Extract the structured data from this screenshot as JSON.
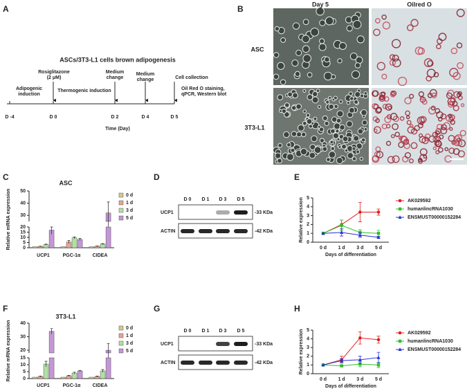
{
  "panel_labels": [
    "A",
    "B",
    "C",
    "D",
    "E",
    "F",
    "G",
    "H"
  ],
  "timeline": {
    "title": "ASCs/3T3-L1 cells brown adipogenesis",
    "days": [
      "D -4",
      "D 0",
      "D 2",
      "D 4",
      "D 5"
    ],
    "events": [
      [
        "Adipogenic",
        "induction"
      ],
      [
        "Rosiglitazone",
        "(2 μM)"
      ],
      [
        "Thermogenic induction"
      ],
      [
        "Medium",
        "change"
      ],
      [
        "Medium",
        "change"
      ],
      [
        "Cell collection"
      ],
      [
        "Oil Red O staining,",
        "qPCR, Western blot"
      ]
    ],
    "axis_label": "Time (Day)"
  },
  "images": {
    "columns": [
      "Day 5",
      "Oilred O"
    ],
    "rows": [
      "ASC",
      "3T3-L1"
    ]
  },
  "blots": [
    {
      "lanes": [
        "D 0",
        "D 1",
        "D 3",
        "D 5"
      ],
      "rows": [
        "UCP1",
        "ACTIN"
      ],
      "sizes": [
        "-33 KDa",
        "-42 KDa"
      ]
    },
    {
      "lanes": [
        "D 0",
        "D 1",
        "D 3",
        "D 5"
      ],
      "rows": [
        "UCP1",
        "ACTIN"
      ],
      "sizes": [
        "-33 KDa",
        "-42 KDa"
      ]
    }
  ],
  "chart_data": [
    {
      "type": "bar",
      "title": "ASC",
      "y_label": "Relative mRNA expression",
      "categories": [
        "UCP1",
        "PGC-1α",
        "CIDEA"
      ],
      "segments": [
        {
          "ylim": [
            0,
            20
          ],
          "yticks": [
            0,
            5,
            10,
            15,
            20
          ]
        },
        {
          "ylim": [
            25,
            50
          ],
          "yticks": [
            30,
            40,
            50
          ]
        }
      ],
      "series": [
        {
          "name": "0 d",
          "color": "#d3c990",
          "values": [
            1,
            1,
            1
          ],
          "errors": [
            0,
            0,
            0
          ]
        },
        {
          "name": "1 d",
          "color": "#e9a497",
          "values": [
            1.3,
            5.5,
            1.5
          ],
          "errors": [
            0.2,
            1.5,
            0.3
          ]
        },
        {
          "name": "3 d",
          "color": "#b2dfa3",
          "values": [
            3,
            9.5,
            3.5
          ],
          "errors": [
            0.5,
            1,
            0.5
          ]
        },
        {
          "name": "5 d",
          "color": "#c497d6",
          "values": [
            17,
            8,
            32
          ],
          "errors": [
            4,
            1,
            9
          ]
        }
      ]
    },
    {
      "type": "line",
      "x_label": "Days of differentiation",
      "y_label": "Relative  expression",
      "categories": [
        "0 d",
        "1 d",
        "3 d",
        "5 d"
      ],
      "ylim": [
        0,
        5
      ],
      "yticks": [
        0,
        1,
        2,
        3,
        4,
        5
      ],
      "series": [
        {
          "name": "AK029592",
          "color": "#e0201b",
          "marker": "circle",
          "values": [
            1,
            2.0,
            3.4,
            3.4
          ],
          "errors": [
            0,
            0.5,
            1.1,
            0.35
          ]
        },
        {
          "name": "humanlincRNA1030",
          "color": "#2fbf2a",
          "marker": "square",
          "values": [
            1,
            1.9,
            1.1,
            1.0
          ],
          "errors": [
            0,
            0.6,
            0.3,
            0.35
          ]
        },
        {
          "name": "ENSMUST00000152284",
          "color": "#2430d8",
          "marker": "triangle",
          "values": [
            1,
            1.1,
            0.8,
            0.55
          ],
          "errors": [
            0,
            0.4,
            0.25,
            0.1
          ]
        }
      ]
    },
    {
      "type": "bar",
      "title": "3T3-L1",
      "y_label": "Relative mRNA expression",
      "categories": [
        "UCP1",
        "PGC-1α",
        "CIDEA"
      ],
      "segments": [
        {
          "ylim": [
            0,
            15
          ],
          "yticks": [
            0,
            5,
            10,
            15
          ]
        },
        {
          "ylim": [
            18,
            40
          ],
          "yticks": [
            20,
            30,
            40
          ]
        }
      ],
      "series": [
        {
          "name": "0 d",
          "color": "#d3c990",
          "values": [
            1,
            1,
            1
          ],
          "errors": [
            0,
            0,
            0
          ]
        },
        {
          "name": "1 d",
          "color": "#e9a497",
          "values": [
            1.5,
            2,
            1.5
          ],
          "errors": [
            0.3,
            0.3,
            0.3
          ]
        },
        {
          "name": "3 d",
          "color": "#b2dfa3",
          "values": [
            10.5,
            4,
            5.5
          ],
          "errors": [
            2,
            0.6,
            1
          ]
        },
        {
          "name": "5 d",
          "color": "#c497d6",
          "values": [
            34,
            5.5,
            20
          ],
          "errors": [
            2,
            0.4,
            5
          ]
        }
      ]
    },
    {
      "type": "line",
      "x_label": "Days of differentiation",
      "y_label": "Relative  expression",
      "categories": [
        "0 d",
        "1 d",
        "3 d",
        "5 d"
      ],
      "ylim": [
        0,
        5
      ],
      "yticks": [
        0,
        1,
        2,
        3,
        4,
        5
      ],
      "series": [
        {
          "name": "AK029592",
          "color": "#e0201b",
          "marker": "circle",
          "values": [
            1,
            1.6,
            4.1,
            3.9
          ],
          "errors": [
            0,
            0.4,
            0.7,
            0.4
          ]
        },
        {
          "name": "humanlincRNA1030",
          "color": "#2fbf2a",
          "marker": "square",
          "values": [
            1,
            0.9,
            1.1,
            1.0
          ],
          "errors": [
            0,
            0.1,
            0.3,
            0.3
          ]
        },
        {
          "name": "ENSMUST00000152284",
          "color": "#2430d8",
          "marker": "triangle",
          "values": [
            1,
            1.5,
            1.6,
            1.85
          ],
          "errors": [
            0,
            0.2,
            0.4,
            0.6
          ]
        }
      ]
    }
  ]
}
